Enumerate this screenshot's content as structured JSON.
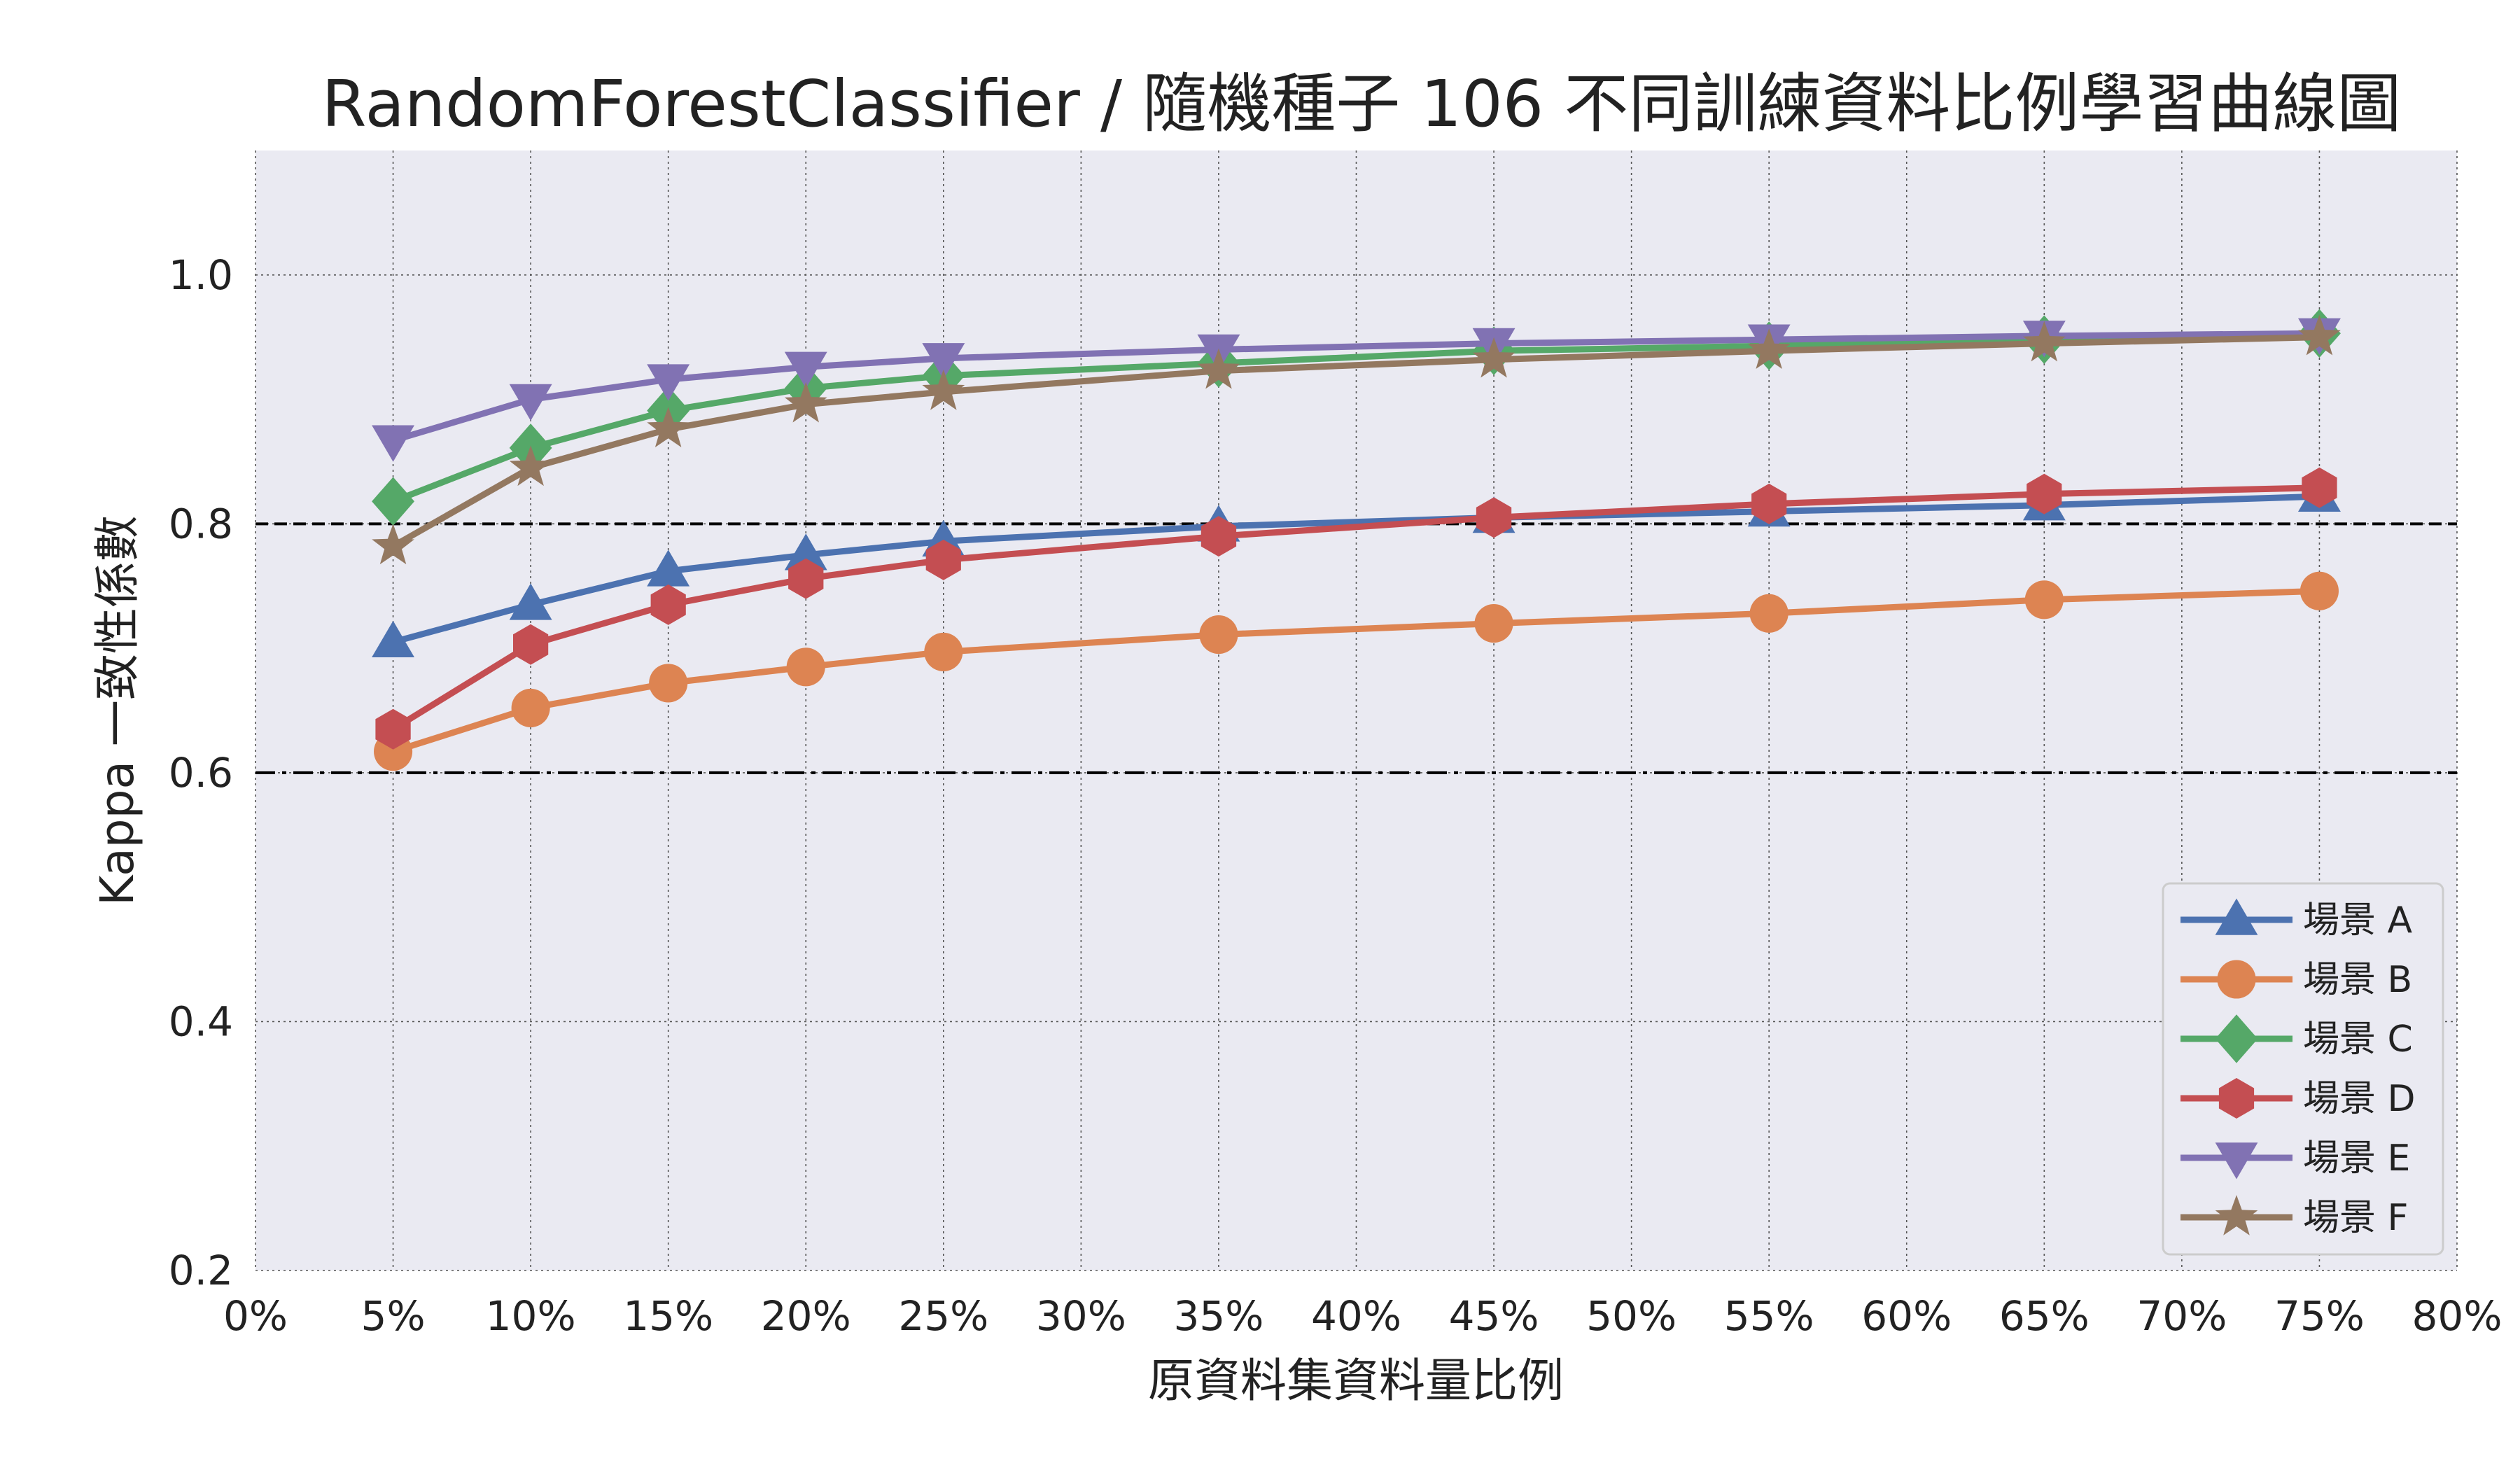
{
  "chart_data": {
    "type": "line",
    "title": "RandomForestClassifier / 隨機種子  106 不同訓練資料比例學習曲線圖",
    "xlabel": "原資料集資料量比例",
    "ylabel": "Kappa 一致性係數",
    "xlim": [
      0,
      80
    ],
    "ylim": [
      0.2,
      1.1
    ],
    "x_ticks": [
      "0%",
      "5%",
      "10%",
      "15%",
      "20%",
      "25%",
      "30%",
      "35%",
      "40%",
      "45%",
      "50%",
      "55%",
      "60%",
      "65%",
      "70%",
      "75%",
      "80%"
    ],
    "y_ticks": [
      "0.2",
      "0.4",
      "0.6",
      "0.8",
      "1.0"
    ],
    "grid": true,
    "legend_position": "bottom-right",
    "reference_lines": [
      {
        "y": 0.8,
        "style": "dashed"
      },
      {
        "y": 0.6,
        "style": "dashdot"
      }
    ],
    "x": [
      5,
      10,
      15,
      20,
      25,
      35,
      45,
      55,
      65,
      75
    ],
    "series": [
      {
        "name": "場景 A",
        "color": "#4c72b0",
        "marker": "triangle-up",
        "values": [
          0.705,
          0.735,
          0.762,
          0.775,
          0.786,
          0.798,
          0.805,
          0.81,
          0.815,
          0.822
        ]
      },
      {
        "name": "場景 B",
        "color": "#dd8452",
        "marker": "circle",
        "values": [
          0.617,
          0.652,
          0.672,
          0.685,
          0.697,
          0.711,
          0.72,
          0.728,
          0.739,
          0.746
        ]
      },
      {
        "name": "場景 C",
        "color": "#55a868",
        "marker": "diamond",
        "values": [
          0.818,
          0.861,
          0.891,
          0.909,
          0.919,
          0.929,
          0.939,
          0.943,
          0.948,
          0.953
        ]
      },
      {
        "name": "場景 D",
        "color": "#c44e52",
        "marker": "hexagon",
        "values": [
          0.635,
          0.703,
          0.735,
          0.756,
          0.771,
          0.79,
          0.805,
          0.816,
          0.824,
          0.829
        ]
      },
      {
        "name": "場景 E",
        "color": "#8172b3",
        "marker": "triangle-down",
        "values": [
          0.867,
          0.9,
          0.916,
          0.926,
          0.933,
          0.94,
          0.945,
          0.948,
          0.951,
          0.953
        ]
      },
      {
        "name": "場景 F",
        "color": "#937860",
        "marker": "star",
        "values": [
          0.782,
          0.845,
          0.876,
          0.896,
          0.906,
          0.923,
          0.932,
          0.939,
          0.945,
          0.95
        ]
      }
    ]
  }
}
